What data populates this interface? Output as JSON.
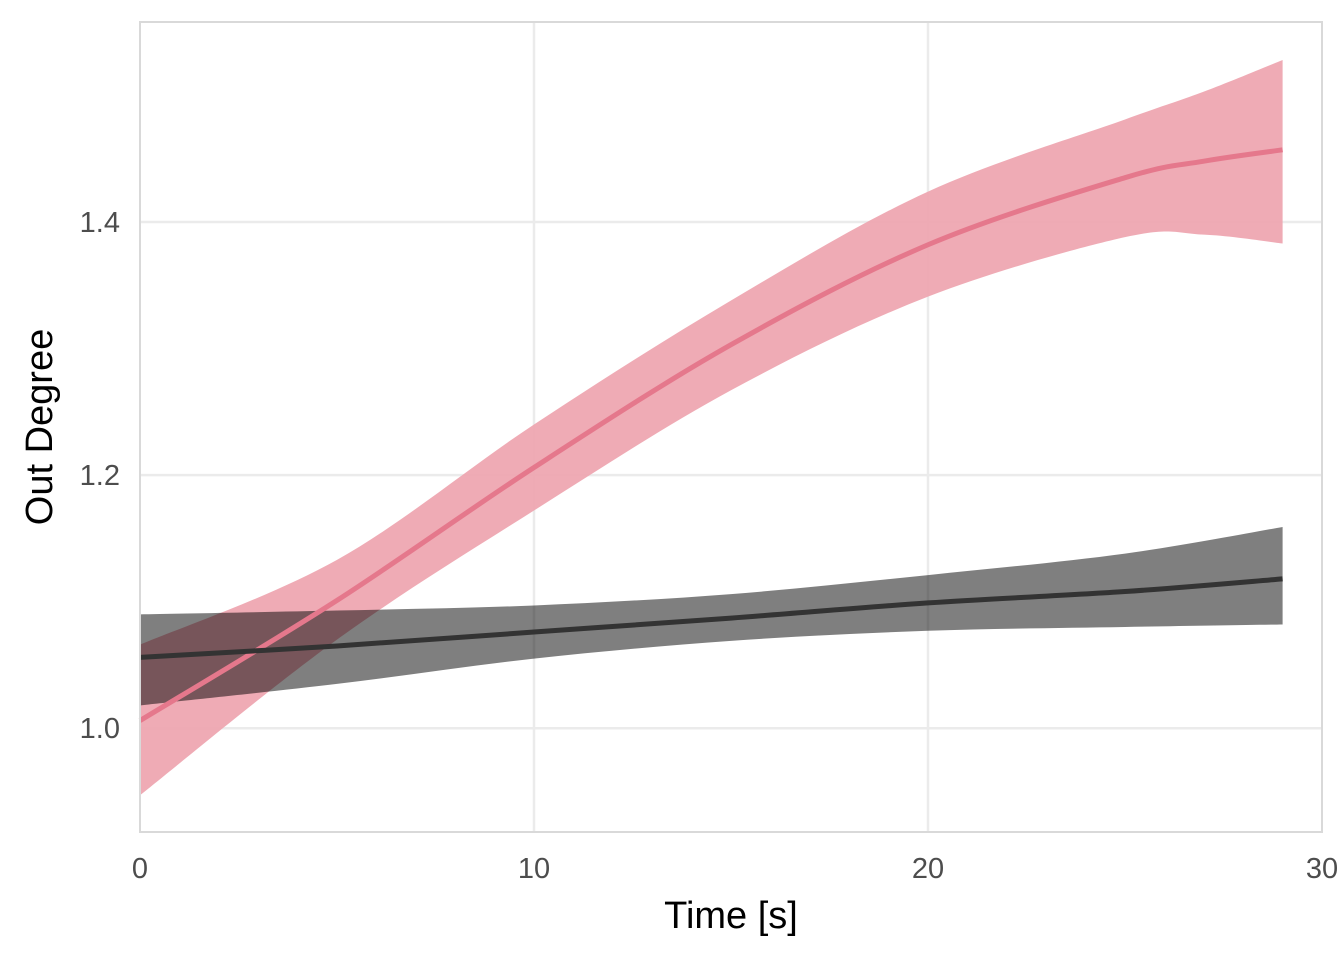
{
  "chart_data": {
    "type": "line",
    "title": "",
    "xlabel": "Time [s]",
    "ylabel": "Out Degree",
    "xlim": [
      0,
      30
    ],
    "ylim": [
      0.918,
      1.558
    ],
    "xticks": [
      0,
      10,
      20,
      30
    ],
    "xtick_labels": [
      "0",
      "10",
      "20",
      "30"
    ],
    "yticks": [
      1.0,
      1.2,
      1.4
    ],
    "ytick_labels": [
      "1.0",
      "1.2",
      "1.4"
    ],
    "grid": true,
    "legend": "none",
    "series": [
      {
        "name": "pink",
        "color": "#e5788c",
        "band_color": "#eea6b1",
        "x": [
          0,
          5,
          10,
          15,
          20,
          25,
          27,
          29
        ],
        "y": [
          1.006,
          1.101,
          1.206,
          1.303,
          1.382,
          1.435,
          1.448,
          1.457
        ],
        "upper": [
          1.066,
          1.133,
          1.24,
          1.338,
          1.424,
          1.481,
          1.503,
          1.528
        ],
        "lower": [
          0.947,
          1.07,
          1.172,
          1.267,
          1.341,
          1.388,
          1.39,
          1.383
        ]
      },
      {
        "name": "dark",
        "color": "#333333",
        "band_color": "#808080",
        "x": [
          0,
          5,
          10,
          15,
          20,
          25,
          29
        ],
        "y": [
          1.056,
          1.065,
          1.076,
          1.087,
          1.099,
          1.108,
          1.118
        ],
        "upper": [
          1.09,
          1.093,
          1.097,
          1.106,
          1.121,
          1.138,
          1.159
        ],
        "lower": [
          1.018,
          1.035,
          1.055,
          1.069,
          1.077,
          1.08,
          1.082
        ]
      }
    ]
  }
}
